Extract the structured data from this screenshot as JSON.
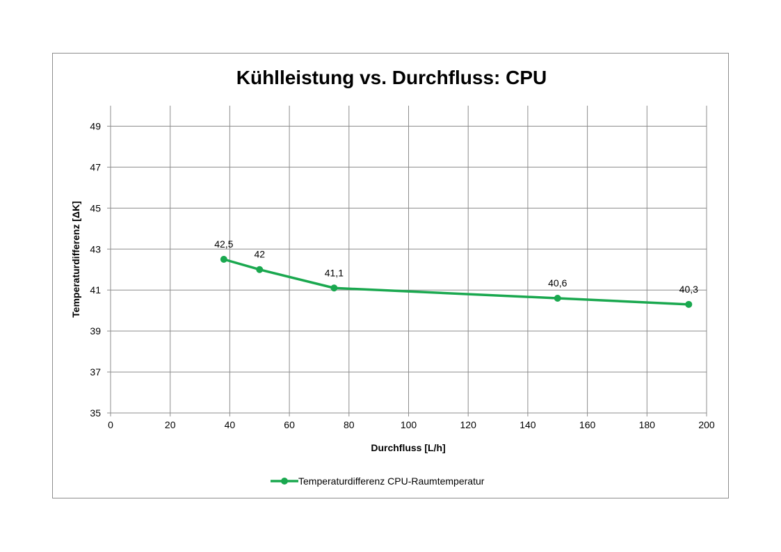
{
  "chart_data": {
    "type": "line",
    "title": "Kühlleistung vs. Durchfluss: CPU",
    "xlabel": "Durchfluss [L/h]",
    "ylabel": "Temperaturdifferenz [ΔK]",
    "xlim": [
      0,
      200
    ],
    "ylim": [
      35,
      50
    ],
    "xticks": [
      0,
      20,
      40,
      60,
      80,
      100,
      120,
      140,
      160,
      180,
      200
    ],
    "yticks": [
      35,
      37,
      39,
      41,
      43,
      45,
      47,
      49
    ],
    "grid": true,
    "legend_position": "bottom",
    "series": [
      {
        "name": "Temperaturdifferenz CPU-Raumtemperatur",
        "color": "#1aa84f",
        "x": [
          38,
          50,
          75,
          150,
          194
        ],
        "y": [
          42.5,
          42,
          41.1,
          40.6,
          40.3
        ],
        "labels": [
          "42,5",
          "42",
          "41,1",
          "40,6",
          "40,3"
        ]
      }
    ]
  }
}
